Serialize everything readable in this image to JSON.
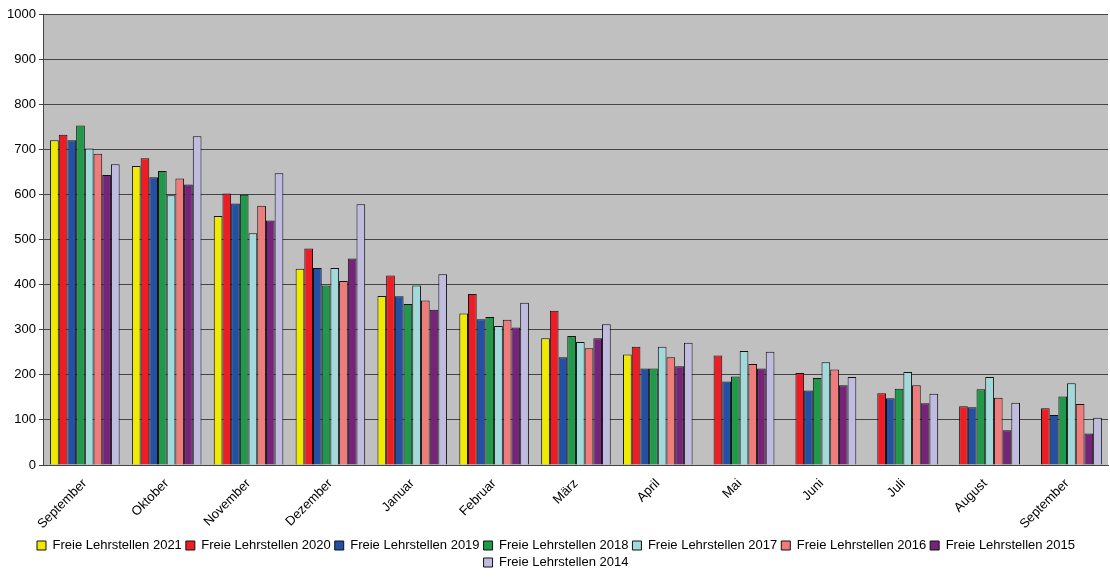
{
  "chart_data": {
    "type": "bar",
    "categories": [
      "September",
      "Oktober",
      "November",
      "Dezember",
      "Januar",
      "Februar",
      "März",
      "April",
      "Mai",
      "Juni",
      "Juli",
      "August",
      "September"
    ],
    "series": [
      {
        "name": "Freie Lehrstellen 2021",
        "color": "#f0ea00",
        "values": [
          720,
          663,
          552,
          435,
          375,
          336,
          281,
          245,
          null,
          null,
          null,
          null,
          null
        ]
      },
      {
        "name": "Freie Lehrstellen 2020",
        "color": "#ee1c25",
        "values": [
          732,
          680,
          602,
          480,
          420,
          379,
          342,
          262,
          243,
          204,
          159,
          130,
          126
        ]
      },
      {
        "name": "Freie Lehrstellen 2019",
        "color": "#2450a4",
        "values": [
          720,
          638,
          580,
          437,
          374,
          323,
          239,
          214,
          185,
          165,
          148,
          128,
          111
        ]
      },
      {
        "name": "Freie Lehrstellen 2018",
        "color": "#21994a",
        "values": [
          753,
          652,
          599,
          398,
          357,
          328,
          286,
          214,
          196,
          193,
          169,
          168,
          152
        ]
      },
      {
        "name": "Freie Lehrstellen 2017",
        "color": "#a2dadb",
        "values": [
          702,
          598,
          514,
          437,
          398,
          308,
          273,
          262,
          253,
          228,
          206,
          195,
          181
        ]
      },
      {
        "name": "Freie Lehrstellen 2016",
        "color": "#f07b7b",
        "values": [
          690,
          635,
          575,
          408,
          365,
          322,
          259,
          239,
          224,
          212,
          177,
          149,
          135
        ]
      },
      {
        "name": "Freie Lehrstellen 2015",
        "color": "#76237a",
        "values": [
          643,
          622,
          542,
          458,
          344,
          305,
          281,
          219,
          214,
          177,
          137,
          77,
          70
        ]
      },
      {
        "name": "Freie Lehrstellen 2014",
        "color": "#c0bce0",
        "values": [
          667,
          729,
          647,
          578,
          423,
          360,
          312,
          271,
          251,
          195,
          158,
          138,
          105
        ]
      }
    ],
    "ylim": [
      0,
      1000
    ],
    "yticks": [
      0,
      100,
      200,
      300,
      400,
      500,
      600,
      700,
      800,
      900,
      1000
    ],
    "grid": "y",
    "legend": "bottom"
  }
}
